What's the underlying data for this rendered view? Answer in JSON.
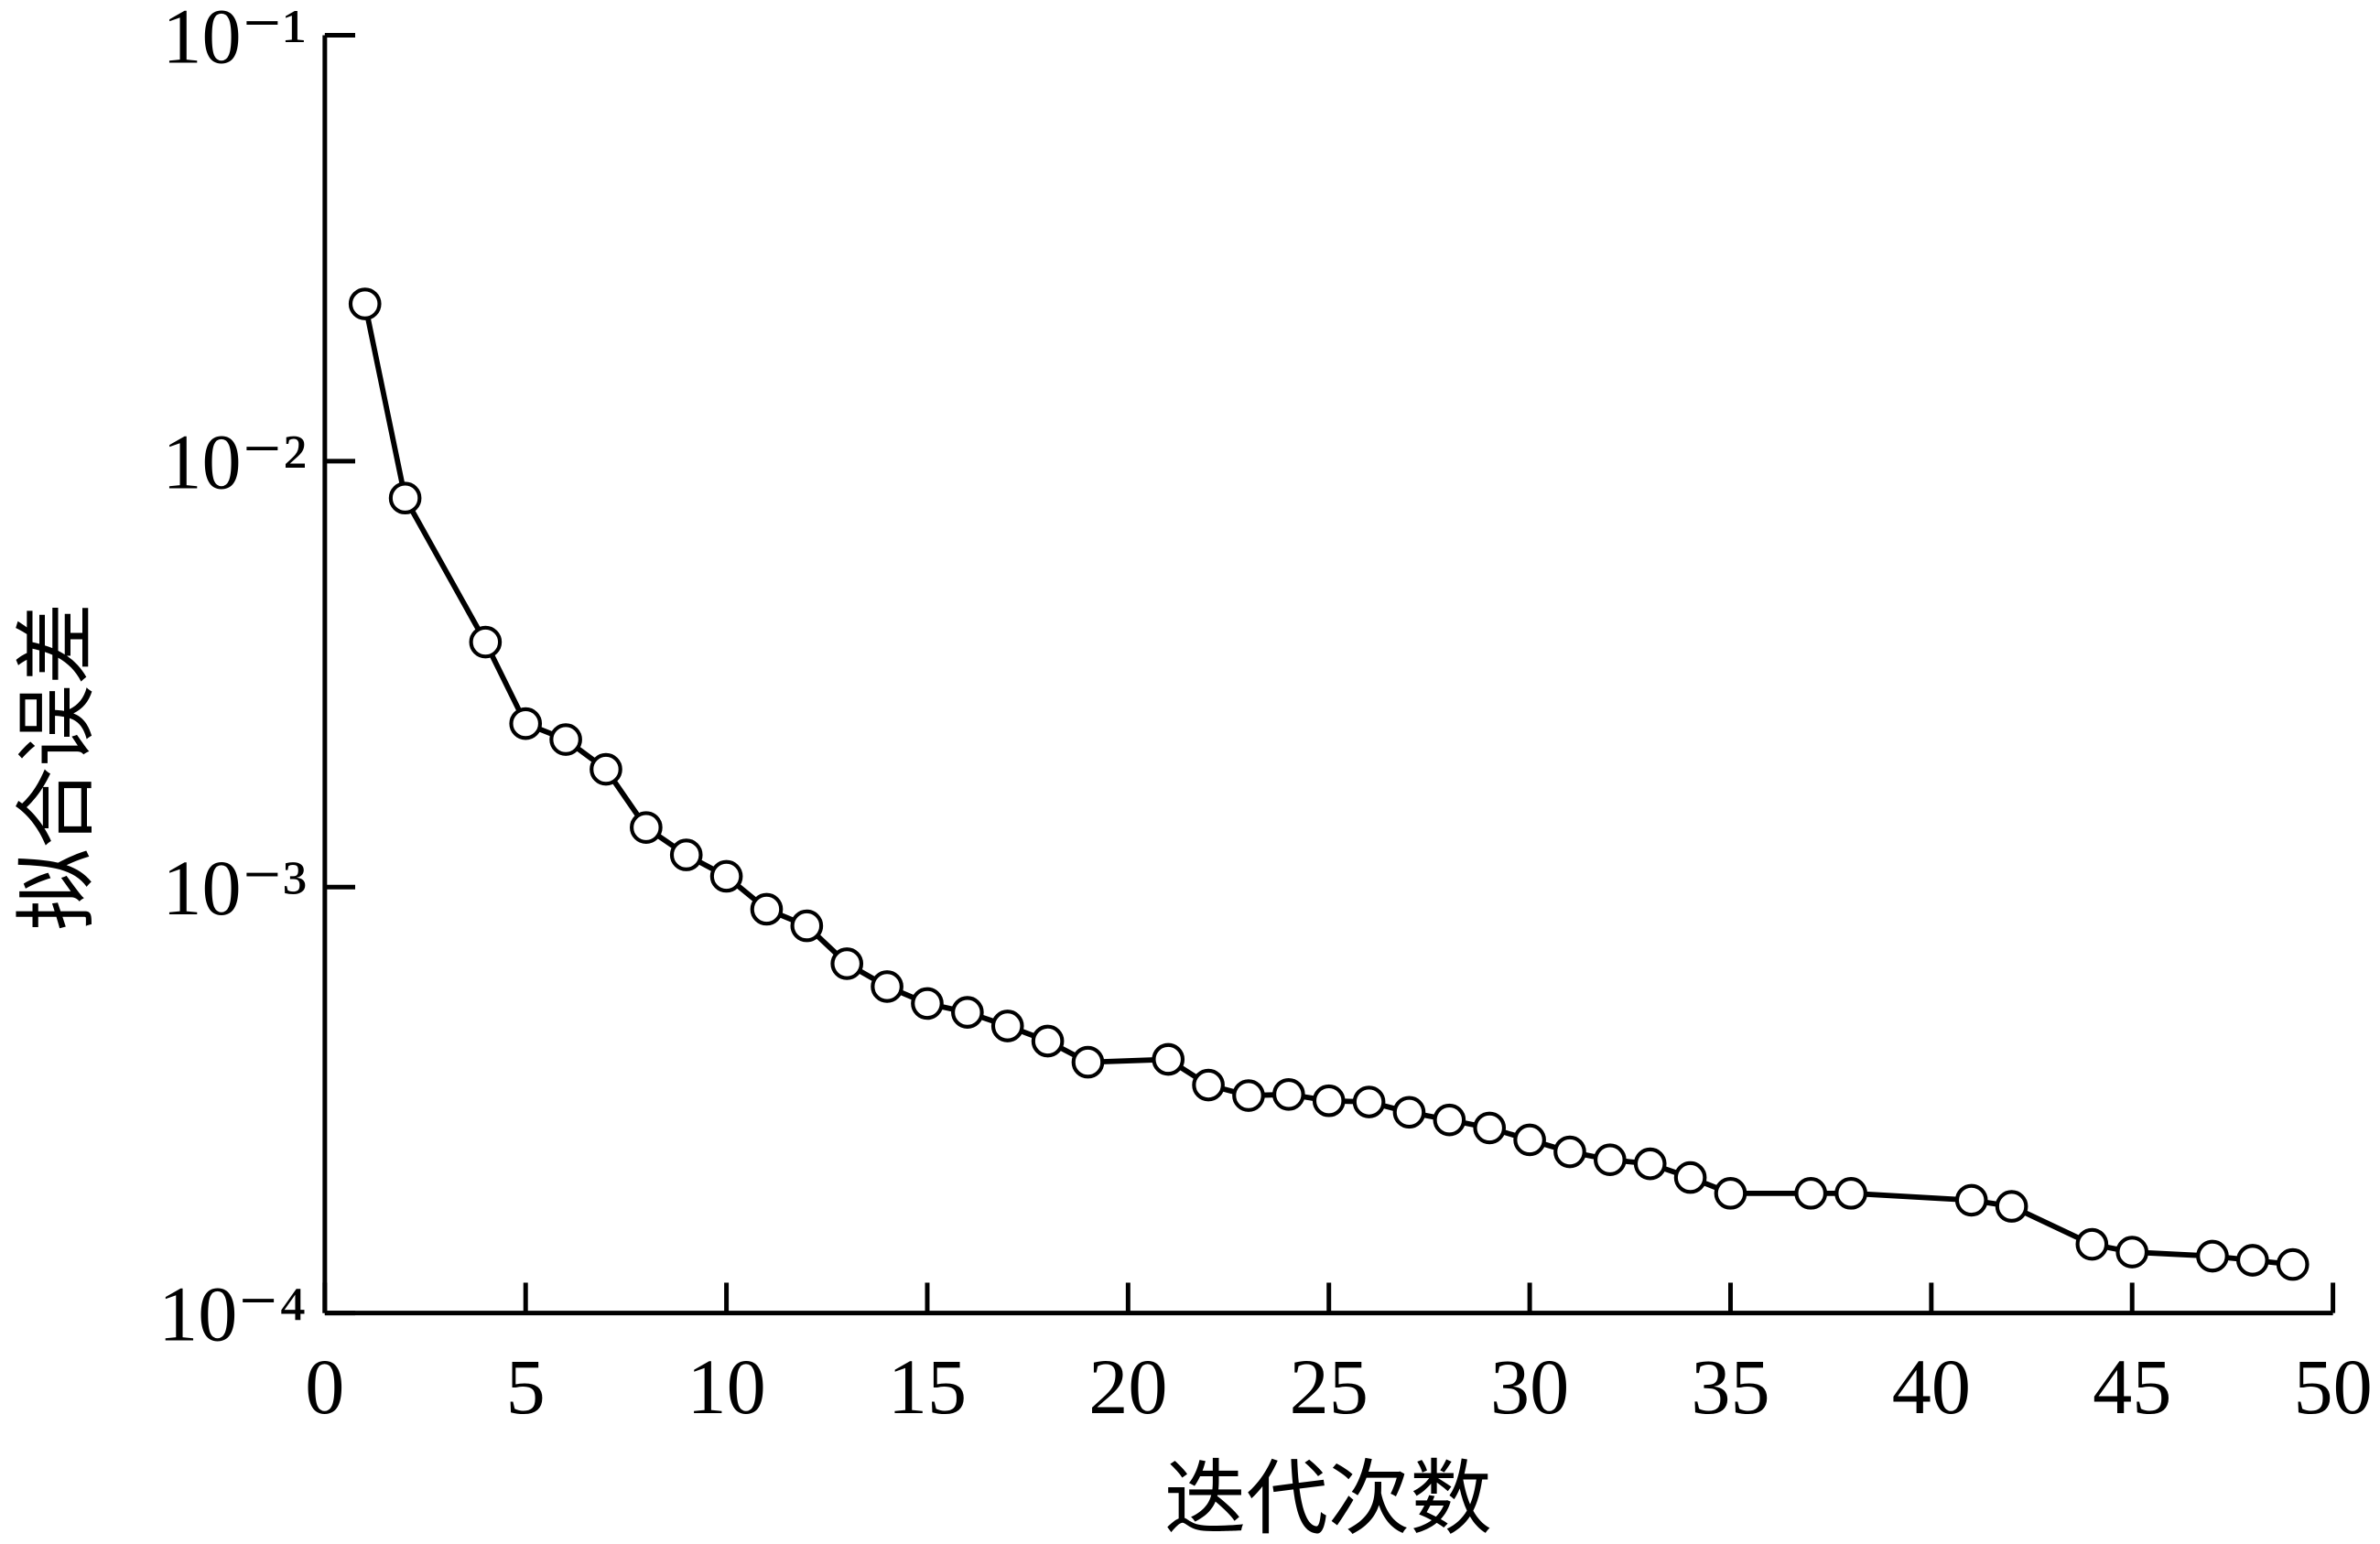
{
  "chart_data": {
    "type": "line",
    "xlabel": "迭代次数",
    "ylabel": "拟合误差",
    "yscale": "log",
    "color": "#000000",
    "marker": "circle",
    "xlim": [
      0,
      50
    ],
    "xticks": [
      0,
      5,
      10,
      15,
      20,
      25,
      30,
      35,
      40,
      45,
      50
    ],
    "ylim": [
      0.0001,
      0.1
    ],
    "yticks": [
      {
        "value": 0.0001,
        "label": "10⁻⁴"
      },
      {
        "value": 0.001,
        "label": "10⁻³"
      },
      {
        "value": 0.01,
        "label": "10⁻²"
      },
      {
        "value": 0.1,
        "label": "10⁻¹"
      }
    ],
    "x": [
      1,
      2,
      4,
      5,
      6,
      7,
      8,
      9,
      10,
      11,
      12,
      13,
      14,
      15,
      16,
      17,
      18,
      19,
      21,
      22,
      23,
      24,
      25,
      26,
      27,
      28,
      29,
      30,
      31,
      32,
      33,
      34,
      35,
      37,
      38,
      41,
      42,
      44,
      45,
      47,
      48,
      49
    ],
    "values": [
      0.0234,
      0.00819,
      0.00376,
      0.00242,
      0.00222,
      0.00189,
      0.00138,
      0.00119,
      0.00106,
      0.000887,
      0.000811,
      0.000661,
      0.000584,
      0.000533,
      0.000508,
      0.000472,
      0.000435,
      0.000388,
      0.000394,
      0.000343,
      0.000324,
      0.000326,
      0.000315,
      0.000313,
      0.000296,
      0.000284,
      0.000272,
      0.000255,
      0.000239,
      0.000229,
      0.000224,
      0.000208,
      0.000191,
      0.000191,
      0.000191,
      0.000184,
      0.000178,
      0.000145,
      0.000139,
      0.000136,
      0.000133,
      0.00013
    ]
  }
}
